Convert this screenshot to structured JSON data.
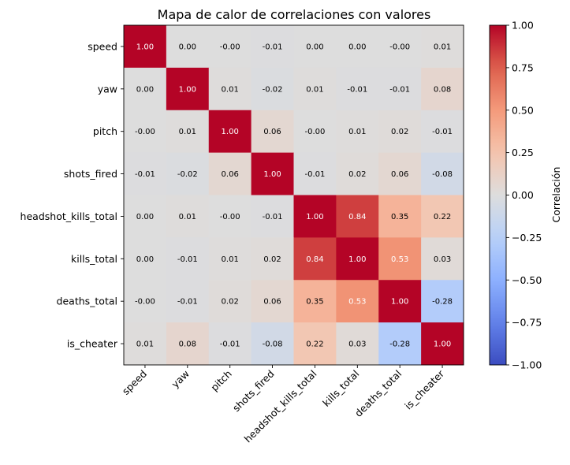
{
  "chart_data": {
    "type": "heatmap",
    "title": "Mapa de calor de correlaciones con valores",
    "variables": [
      "speed",
      "yaw",
      "pitch",
      "shots_fired",
      "headshot_kills_total",
      "kills_total",
      "deaths_total",
      "is_cheater"
    ],
    "matrix": [
      [
        1.0,
        0.0,
        -0.0,
        -0.01,
        0.0,
        0.0,
        -0.0,
        0.01
      ],
      [
        0.0,
        1.0,
        0.01,
        -0.02,
        0.01,
        -0.01,
        -0.01,
        0.08
      ],
      [
        -0.0,
        0.01,
        1.0,
        0.06,
        -0.0,
        0.01,
        0.02,
        -0.01
      ],
      [
        -0.01,
        -0.02,
        0.06,
        1.0,
        -0.01,
        0.02,
        0.06,
        -0.08
      ],
      [
        0.0,
        0.01,
        -0.0,
        -0.01,
        1.0,
        0.84,
        0.35,
        0.22
      ],
      [
        0.0,
        -0.01,
        0.01,
        0.02,
        0.84,
        1.0,
        0.53,
        0.03
      ],
      [
        -0.0,
        -0.01,
        0.02,
        0.06,
        0.35,
        0.53,
        1.0,
        -0.28
      ],
      [
        0.01,
        0.08,
        -0.01,
        -0.08,
        0.22,
        0.03,
        -0.28,
        1.0
      ]
    ],
    "cell_labels": [
      [
        "1.00",
        "0.00",
        "-0.00",
        "-0.01",
        "0.00",
        "0.00",
        "-0.00",
        "0.01"
      ],
      [
        "0.00",
        "1.00",
        "0.01",
        "-0.02",
        "0.01",
        "-0.01",
        "-0.01",
        "0.08"
      ],
      [
        "-0.00",
        "0.01",
        "1.00",
        "0.06",
        "-0.00",
        "0.01",
        "0.02",
        "-0.01"
      ],
      [
        "-0.01",
        "-0.02",
        "0.06",
        "1.00",
        "-0.01",
        "0.02",
        "0.06",
        "-0.08"
      ],
      [
        "0.00",
        "0.01",
        "-0.00",
        "-0.01",
        "1.00",
        "0.84",
        "0.35",
        "0.22"
      ],
      [
        "0.00",
        "-0.01",
        "0.01",
        "0.02",
        "0.84",
        "1.00",
        "0.53",
        "0.03"
      ],
      [
        "-0.00",
        "-0.01",
        "0.02",
        "0.06",
        "0.35",
        "0.53",
        "1.00",
        "-0.28"
      ],
      [
        "0.01",
        "0.08",
        "-0.01",
        "-0.08",
        "0.22",
        "0.03",
        "-0.28",
        "1.00"
      ]
    ],
    "colormap": "coolwarm",
    "vmin": -1.0,
    "vmax": 1.0,
    "colorbar": {
      "label": "Correlación",
      "ticks": [
        "1.00",
        "0.75",
        "0.50",
        "0.25",
        "0.00",
        "−0.25",
        "−0.50",
        "−0.75",
        "−1.00"
      ],
      "tick_values": [
        1.0,
        0.75,
        0.5,
        0.25,
        0.0,
        -0.25,
        -0.5,
        -0.75,
        -1.0
      ]
    },
    "grid": false
  }
}
